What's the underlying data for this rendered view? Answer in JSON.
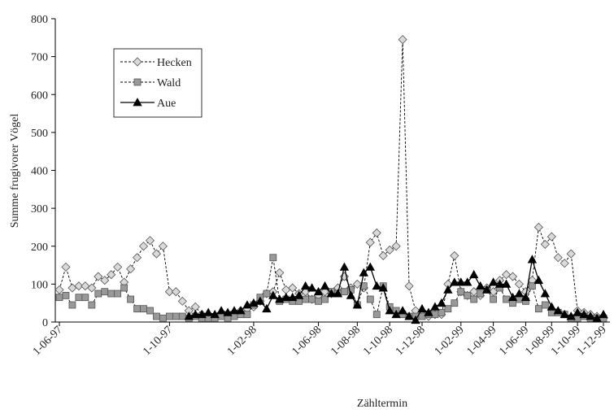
{
  "chart_data": {
    "type": "line",
    "ylabel": "Summe frugivorer Vögel",
    "xlabel": "Zähltermin",
    "ylim": [
      0,
      800
    ],
    "yticks": [
      0,
      100,
      200,
      300,
      400,
      500,
      600,
      700,
      800
    ],
    "grid": false,
    "legend": "upper left",
    "categories": [
      "1-06-97",
      null,
      null,
      null,
      null,
      null,
      null,
      null,
      null,
      null,
      null,
      null,
      null,
      null,
      null,
      null,
      null,
      "1-10-97",
      null,
      null,
      null,
      null,
      null,
      null,
      null,
      null,
      null,
      null,
      null,
      null,
      "1-02-98",
      null,
      null,
      null,
      null,
      null,
      null,
      null,
      null,
      null,
      "1-06-98",
      null,
      null,
      null,
      null,
      null,
      "1-08-98",
      null,
      null,
      null,
      null,
      "1-10-98",
      null,
      null,
      null,
      null,
      "1-12-98",
      null,
      null,
      null,
      null,
      null,
      "1-02-99",
      null,
      null,
      null,
      null,
      "1-04-99",
      null,
      null,
      null,
      null,
      "1-06-99",
      null,
      null,
      null,
      "1-08-99",
      null,
      null,
      null,
      "1-10-99",
      null,
      null,
      null,
      "1-12-99"
    ],
    "series": [
      {
        "name": "Hecken",
        "color": "#d9d9d9",
        "marker": "diamond",
        "dashed": true,
        "values": [
          85,
          145,
          90,
          95,
          95,
          90,
          120,
          110,
          125,
          145,
          105,
          140,
          170,
          200,
          215,
          180,
          200,
          80,
          80,
          55,
          30,
          40,
          20,
          20,
          15,
          20,
          20,
          25,
          30,
          35,
          40,
          55,
          75,
          80,
          130,
          85,
          90,
          75,
          80,
          60,
          70,
          80,
          75,
          90,
          120,
          90,
          100,
          90,
          210,
          235,
          175,
          190,
          200,
          745,
          95,
          30,
          20,
          15,
          20,
          20,
          100,
          175,
          80,
          70,
          80,
          70,
          90,
          80,
          110,
          125,
          120,
          100,
          80,
          110,
          250,
          205,
          225,
          170,
          155,
          180,
          30,
          25,
          20,
          15,
          10
        ]
      },
      {
        "name": "Wald",
        "color": "#999999",
        "marker": "square",
        "dashed": true,
        "values": [
          65,
          70,
          45,
          65,
          65,
          45,
          75,
          80,
          75,
          75,
          90,
          60,
          35,
          35,
          30,
          15,
          10,
          15,
          15,
          15,
          10,
          15,
          10,
          10,
          10,
          15,
          10,
          15,
          20,
          20,
          45,
          65,
          75,
          170,
          55,
          60,
          55,
          55,
          60,
          60,
          55,
          60,
          80,
          75,
          80,
          85,
          45,
          95,
          60,
          20,
          95,
          40,
          30,
          20,
          15,
          15,
          15,
          20,
          20,
          25,
          35,
          50,
          80,
          70,
          60,
          75,
          85,
          60,
          90,
          60,
          50,
          60,
          55,
          95,
          35,
          45,
          25,
          25,
          20,
          10,
          10,
          15,
          10,
          10,
          10
        ]
      },
      {
        "name": "Aue",
        "color": "#000000",
        "marker": "triangle",
        "dashed": false,
        "values": [
          null,
          null,
          null,
          null,
          null,
          null,
          null,
          null,
          null,
          null,
          null,
          null,
          null,
          null,
          null,
          null,
          null,
          null,
          null,
          null,
          15,
          20,
          20,
          25,
          20,
          30,
          25,
          30,
          30,
          45,
          50,
          55,
          35,
          70,
          60,
          65,
          65,
          70,
          95,
          90,
          80,
          95,
          75,
          75,
          145,
          70,
          45,
          130,
          145,
          95,
          90,
          30,
          20,
          30,
          15,
          5,
          35,
          25,
          40,
          50,
          85,
          105,
          105,
          105,
          125,
          95,
          85,
          105,
          100,
          100,
          65,
          75,
          65,
          165,
          110,
          75,
          40,
          30,
          20,
          15,
          25,
          20,
          15,
          10,
          20
        ]
      }
    ]
  }
}
